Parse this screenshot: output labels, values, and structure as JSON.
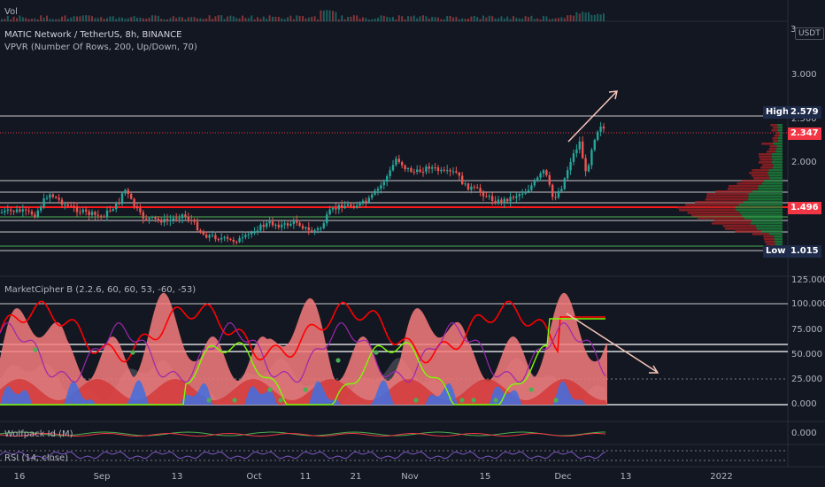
{
  "volume_pane": {
    "label": "Vol"
  },
  "price_pane": {
    "symbol_title": "MATIC Network / TetherUS, 8h, BINANCE",
    "indicator_title": "VPVR (Number Of Rows, 200, Up/Down, 70)",
    "currency": "USDT",
    "currency_prefix": "3",
    "axis_ticks": [
      "3.000",
      "2.500",
      "2.000"
    ],
    "high_label": "High",
    "high_value": "2.579",
    "last_price": "2.347",
    "level_price": "1.496",
    "low_label": "Low",
    "low_value": "1.015"
  },
  "cipher_pane": {
    "title": "MarketCipher B (2.2.6, 60, 60, 53, -60, -53)",
    "axis_ticks": [
      "125.000",
      "100.000",
      "75.000",
      "50.000",
      "25.000",
      "0.000"
    ]
  },
  "wolfpack_pane": {
    "title": "Wolfpack Id (M)",
    "axis_tick": "0.000"
  },
  "rsi_pane": {
    "title": "RSI (14, close)"
  },
  "time_axis": [
    "16",
    "Sep",
    "13",
    "Oct",
    "11",
    "21",
    "Nov",
    "15",
    "Dec",
    "13",
    "2022"
  ],
  "colors": {
    "background": "#131722",
    "up": "#26a69a",
    "down": "#ef5350",
    "accent_red": "#f23645",
    "line_red": "#ff0000",
    "green_line": "#7cfc00",
    "purple": "#9c27b0"
  }
}
